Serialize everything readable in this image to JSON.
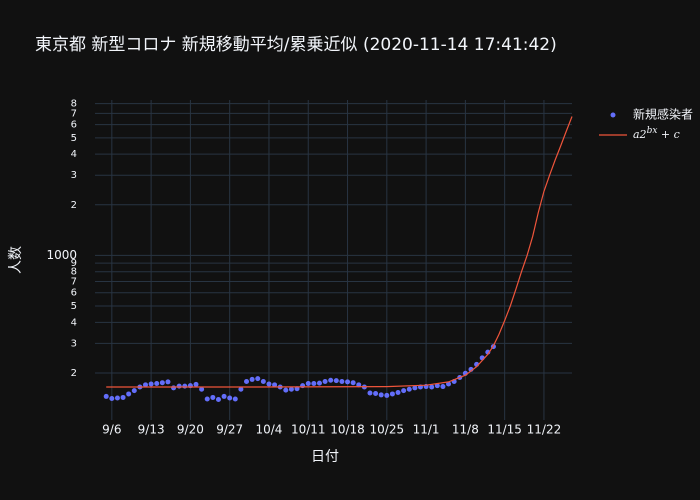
{
  "chart_data": {
    "type": "scatter",
    "title": "東京都 新型コロナ 新規移動平均/累乗近似 (2020-11-14 17:41:42)",
    "xlabel": "日付",
    "ylabel": "人数",
    "log_y": true,
    "grid": true,
    "xlim": [
      "2020-09-03",
      "2020-11-27"
    ],
    "ylim": [
      105,
      8400
    ],
    "xticks": [
      {
        "value": "2020-09-06",
        "label": "9/6"
      },
      {
        "value": "2020-09-13",
        "label": "9/13"
      },
      {
        "value": "2020-09-20",
        "label": "9/20"
      },
      {
        "value": "2020-09-27",
        "label": "9/27"
      },
      {
        "value": "2020-10-04",
        "label": "10/4"
      },
      {
        "value": "2020-10-11",
        "label": "10/11"
      },
      {
        "value": "2020-10-18",
        "label": "10/18"
      },
      {
        "value": "2020-10-25",
        "label": "10/25"
      },
      {
        "value": "2020-11-01",
        "label": "11/1"
      },
      {
        "value": "2020-11-08",
        "label": "11/8"
      },
      {
        "value": "2020-11-15",
        "label": "11/15"
      },
      {
        "value": "2020-11-22",
        "label": "11/22"
      }
    ],
    "yticks": [
      {
        "value": 200,
        "label": "2"
      },
      {
        "value": 300,
        "label": "3"
      },
      {
        "value": 400,
        "label": "4"
      },
      {
        "value": 500,
        "label": "5"
      },
      {
        "value": 600,
        "label": "6"
      },
      {
        "value": 700,
        "label": "7"
      },
      {
        "value": 800,
        "label": "8"
      },
      {
        "value": 900,
        "label": "9"
      },
      1000,
      {
        "value": 2000,
        "label": "2"
      },
      {
        "value": 3000,
        "label": "3"
      },
      {
        "value": 4000,
        "label": "4"
      },
      {
        "value": 5000,
        "label": "5"
      },
      {
        "value": 6000,
        "label": "6"
      },
      {
        "value": 7000,
        "label": "7"
      },
      {
        "value": 8000,
        "label": "8"
      }
    ],
    "series": [
      {
        "name": "新規感染者",
        "mode": "markers",
        "color": "#636efa",
        "x": [
          "2020-09-05",
          "2020-09-06",
          "2020-09-07",
          "2020-09-08",
          "2020-09-09",
          "2020-09-10",
          "2020-09-11",
          "2020-09-12",
          "2020-09-13",
          "2020-09-14",
          "2020-09-15",
          "2020-09-16",
          "2020-09-17",
          "2020-09-18",
          "2020-09-19",
          "2020-09-20",
          "2020-09-21",
          "2020-09-22",
          "2020-09-23",
          "2020-09-24",
          "2020-09-25",
          "2020-09-26",
          "2020-09-27",
          "2020-09-28",
          "2020-09-29",
          "2020-09-30",
          "2020-10-01",
          "2020-10-02",
          "2020-10-03",
          "2020-10-04",
          "2020-10-05",
          "2020-10-06",
          "2020-10-07",
          "2020-10-08",
          "2020-10-09",
          "2020-10-10",
          "2020-10-11",
          "2020-10-12",
          "2020-10-13",
          "2020-10-14",
          "2020-10-15",
          "2020-10-16",
          "2020-10-17",
          "2020-10-18",
          "2020-10-19",
          "2020-10-20",
          "2020-10-21",
          "2020-10-22",
          "2020-10-23",
          "2020-10-24",
          "2020-10-25",
          "2020-10-26",
          "2020-10-27",
          "2020-10-28",
          "2020-10-29",
          "2020-10-30",
          "2020-10-31",
          "2020-11-01",
          "2020-11-02",
          "2020-11-03",
          "2020-11-04",
          "2020-11-05",
          "2020-11-06",
          "2020-11-07",
          "2020-11-08",
          "2020-11-09",
          "2020-11-10",
          "2020-11-11",
          "2020-11-12",
          "2020-11-13"
        ],
        "values": [
          145,
          141,
          142,
          143,
          150,
          157,
          165,
          170,
          172,
          173,
          175,
          177,
          163,
          167,
          167,
          168,
          171,
          160,
          140,
          143,
          139,
          145,
          142,
          140,
          160,
          178,
          183,
          185,
          178,
          172,
          170,
          165,
          158,
          160,
          161,
          168,
          173,
          173,
          174,
          178,
          181,
          180,
          178,
          177,
          175,
          170,
          165,
          152,
          151,
          148,
          147,
          150,
          153,
          157,
          160,
          163,
          165,
          166,
          165,
          168,
          166,
          172,
          178,
          188,
          199,
          210,
          225,
          246,
          266,
          287
        ]
      },
      {
        "name": "a2^{bx} + c",
        "mode": "lines",
        "color": "#EF553B",
        "x": [
          "2020-09-05",
          "2020-10-01",
          "2020-10-25",
          "2020-11-01",
          "2020-11-05",
          "2020-11-08",
          "2020-11-10",
          "2020-11-12",
          "2020-11-13",
          "2020-11-14",
          "2020-11-15",
          "2020-11-16",
          "2020-11-17",
          "2020-11-18",
          "2020-11-19",
          "2020-11-20",
          "2020-11-21",
          "2020-11-22",
          "2020-11-23",
          "2020-11-24",
          "2020-11-25",
          "2020-11-26",
          "2020-11-27"
        ],
        "values": [
          165,
          165,
          166,
          169,
          177,
          194,
          218,
          258,
          290,
          340,
          410,
          500,
          630,
          800,
          1000,
          1300,
          1800,
          2400,
          3000,
          3700,
          4500,
          5500,
          6700
        ]
      }
    ]
  }
}
